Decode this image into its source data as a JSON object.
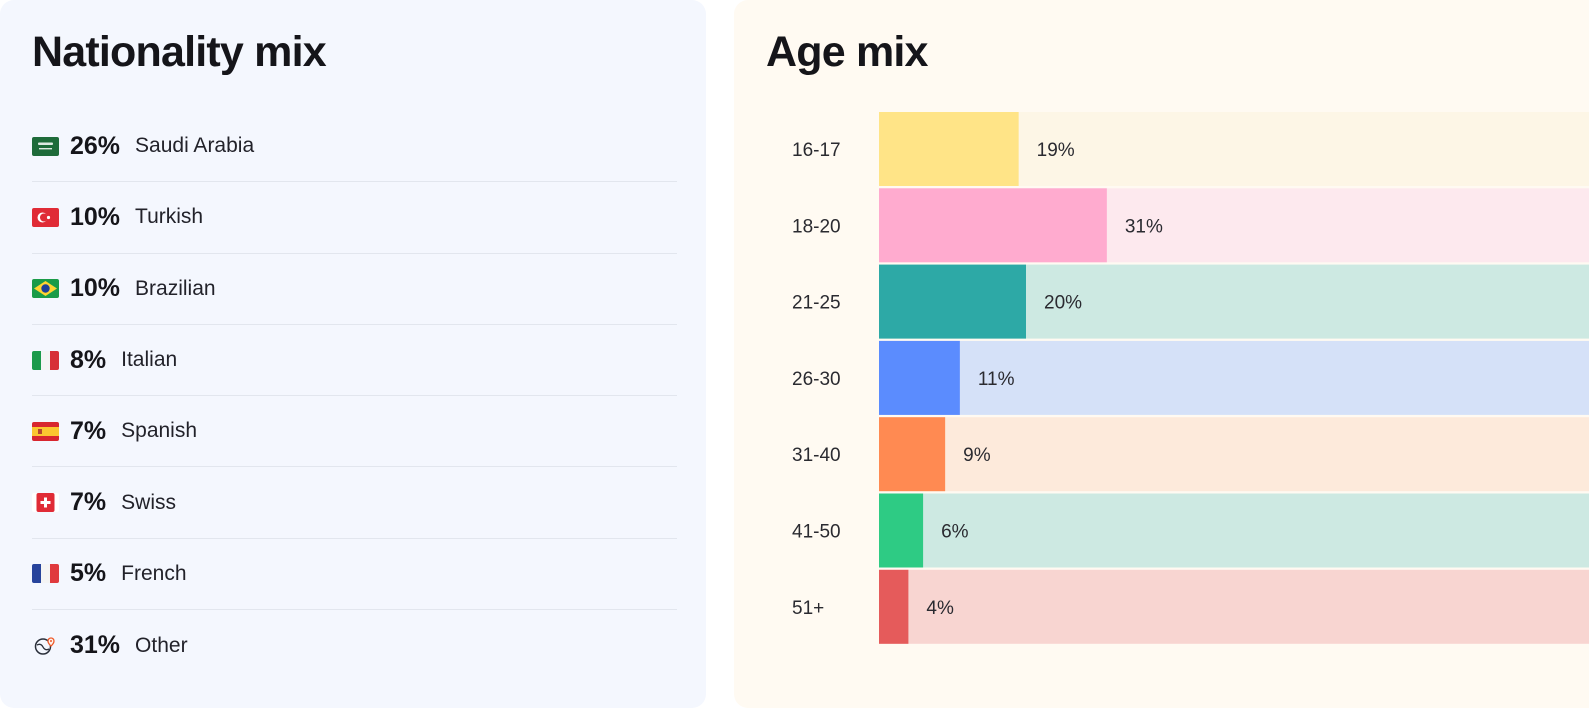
{
  "nationality": {
    "title": "Nationality mix",
    "items": [
      {
        "flag": "saudi-arabia-flag-icon",
        "pct": "26%",
        "name": "Saudi Arabia"
      },
      {
        "flag": "turkey-flag-icon",
        "pct": "10%",
        "name": "Turkish"
      },
      {
        "flag": "brazil-flag-icon",
        "pct": "10%",
        "name": "Brazilian"
      },
      {
        "flag": "italy-flag-icon",
        "pct": "8%",
        "name": "Italian"
      },
      {
        "flag": "spain-flag-icon",
        "pct": "7%",
        "name": "Spanish"
      },
      {
        "flag": "switzerland-flag-icon",
        "pct": "7%",
        "name": "Swiss"
      },
      {
        "flag": "france-flag-icon",
        "pct": "5%",
        "name": "French"
      },
      {
        "flag": "globe-pin-icon",
        "pct": "31%",
        "name": "Other"
      }
    ]
  },
  "age": {
    "title": "Age mix"
  },
  "chart_data": {
    "type": "bar",
    "orientation": "horizontal",
    "title": "Age mix",
    "categories": [
      "16-17",
      "18-20",
      "21-25",
      "26-30",
      "31-40",
      "41-50",
      "51+"
    ],
    "values": [
      19,
      31,
      20,
      11,
      9,
      6,
      4
    ],
    "value_labels": [
      "19%",
      "31%",
      "20%",
      "11%",
      "9%",
      "6%",
      "4%"
    ],
    "unit": "%",
    "bar_colors": [
      "#ffe487",
      "#ffabcf",
      "#2da9a6",
      "#5b8cfe",
      "#ff8a52",
      "#2ecb84",
      "#e55b5b"
    ],
    "track_colors": [
      "#fdf6e6",
      "#fde9ee",
      "#cde9e2",
      "#d5e1f8",
      "#fdeadb",
      "#cde9e2",
      "#f8d5d1"
    ],
    "xlim": [
      0,
      100
    ],
    "grid": false,
    "legend": "none"
  }
}
